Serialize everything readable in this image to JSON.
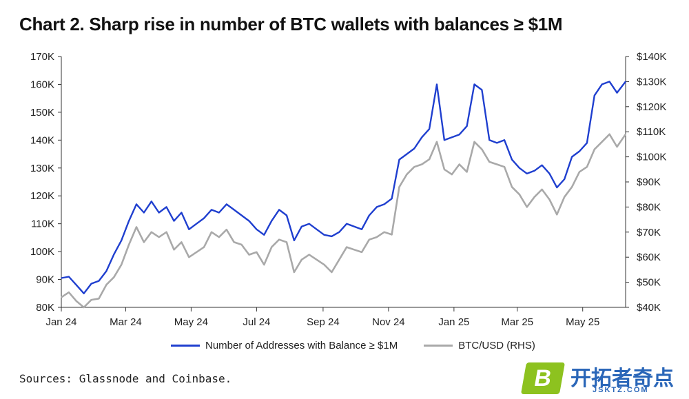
{
  "title": "Chart 2. Sharp rise in number of BTC wallets with balances ≥ $1M",
  "source": "Sources: Glassnode and Coinbase.",
  "watermark": {
    "badge": "B",
    "brand": "开拓者奇点",
    "url": "JSKTZ.COM"
  },
  "colors": {
    "addresses": "#1f3fcf",
    "btc": "#a9a9a9",
    "axis": "#333333"
  },
  "chart_data": {
    "type": "line",
    "title": "Chart 2. Sharp rise in number of BTC wallets with balances ≥ $1M",
    "x_tick_labels": [
      "Jan 24",
      "Mar 24",
      "May 24",
      "Jul 24",
      "Sep 24",
      "Nov 24",
      "Jan 25",
      "Mar 25",
      "May 25"
    ],
    "x_tick_dates": [
      "2024-01-01",
      "2024-03-01",
      "2024-05-01",
      "2024-07-01",
      "2024-09-01",
      "2024-11-01",
      "2025-01-01",
      "2025-03-01",
      "2025-05-01"
    ],
    "x_range": [
      "2024-01-01",
      "2025-06-10"
    ],
    "y_left": {
      "ticks": [
        "80K",
        "90K",
        "100K",
        "110K",
        "120K",
        "130K",
        "140K",
        "150K",
        "160K",
        "170K"
      ],
      "range": [
        80000,
        170000
      ]
    },
    "y_right": {
      "ticks": [
        "$40K",
        "$50K",
        "$60K",
        "$70K",
        "$80K",
        "$90K",
        "$100K",
        "$110K",
        "$120K",
        "$130K",
        "$140K"
      ],
      "range": [
        40000,
        140000
      ]
    },
    "legend": {
      "placement": "bottom"
    },
    "series": [
      {
        "name": "Number of Addresses with Balance ≥ $1M",
        "axis": "left",
        "color": "#1f3fcf",
        "points": [
          [
            "2024-01-01",
            90500
          ],
          [
            "2024-01-08",
            91000
          ],
          [
            "2024-01-15",
            88000
          ],
          [
            "2024-01-22",
            85000
          ],
          [
            "2024-01-29",
            88500
          ],
          [
            "2024-02-05",
            89500
          ],
          [
            "2024-02-12",
            93000
          ],
          [
            "2024-02-19",
            99000
          ],
          [
            "2024-02-26",
            104000
          ],
          [
            "2024-03-04",
            111000
          ],
          [
            "2024-03-11",
            117000
          ],
          [
            "2024-03-18",
            114000
          ],
          [
            "2024-03-25",
            118000
          ],
          [
            "2024-04-01",
            114000
          ],
          [
            "2024-04-08",
            116000
          ],
          [
            "2024-04-15",
            111000
          ],
          [
            "2024-04-22",
            114000
          ],
          [
            "2024-04-29",
            108000
          ],
          [
            "2024-05-06",
            110000
          ],
          [
            "2024-05-13",
            112000
          ],
          [
            "2024-05-20",
            115000
          ],
          [
            "2024-05-27",
            114000
          ],
          [
            "2024-06-03",
            117000
          ],
          [
            "2024-06-10",
            115000
          ],
          [
            "2024-06-17",
            113000
          ],
          [
            "2024-06-24",
            111000
          ],
          [
            "2024-07-01",
            108000
          ],
          [
            "2024-07-08",
            106000
          ],
          [
            "2024-07-15",
            111000
          ],
          [
            "2024-07-22",
            115000
          ],
          [
            "2024-07-29",
            113000
          ],
          [
            "2024-08-05",
            104000
          ],
          [
            "2024-08-12",
            109000
          ],
          [
            "2024-08-19",
            110000
          ],
          [
            "2024-08-26",
            108000
          ],
          [
            "2024-09-02",
            106000
          ],
          [
            "2024-09-09",
            105500
          ],
          [
            "2024-09-16",
            107000
          ],
          [
            "2024-09-23",
            110000
          ],
          [
            "2024-09-30",
            109000
          ],
          [
            "2024-10-07",
            108000
          ],
          [
            "2024-10-14",
            113000
          ],
          [
            "2024-10-21",
            116000
          ],
          [
            "2024-10-28",
            117000
          ],
          [
            "2024-11-04",
            119000
          ],
          [
            "2024-11-11",
            133000
          ],
          [
            "2024-11-18",
            135000
          ],
          [
            "2024-11-25",
            137000
          ],
          [
            "2024-12-02",
            141000
          ],
          [
            "2024-12-09",
            144000
          ],
          [
            "2024-12-16",
            160000
          ],
          [
            "2024-12-23",
            140000
          ],
          [
            "2024-12-30",
            141000
          ],
          [
            "2025-01-06",
            142000
          ],
          [
            "2025-01-13",
            145000
          ],
          [
            "2025-01-20",
            160000
          ],
          [
            "2025-01-27",
            158000
          ],
          [
            "2025-02-03",
            140000
          ],
          [
            "2025-02-10",
            139000
          ],
          [
            "2025-02-17",
            140000
          ],
          [
            "2025-02-24",
            133000
          ],
          [
            "2025-03-03",
            130000
          ],
          [
            "2025-03-10",
            128000
          ],
          [
            "2025-03-17",
            129000
          ],
          [
            "2025-03-24",
            131000
          ],
          [
            "2025-03-31",
            128000
          ],
          [
            "2025-04-07",
            123000
          ],
          [
            "2025-04-14",
            126000
          ],
          [
            "2025-04-21",
            134000
          ],
          [
            "2025-04-28",
            136000
          ],
          [
            "2025-05-05",
            139000
          ],
          [
            "2025-05-12",
            156000
          ],
          [
            "2025-05-19",
            160000
          ],
          [
            "2025-05-26",
            161000
          ],
          [
            "2025-06-02",
            157000
          ],
          [
            "2025-06-10",
            161000
          ]
        ]
      },
      {
        "name": "BTC/USD (RHS)",
        "axis": "right",
        "color": "#a9a9a9",
        "points": [
          [
            "2024-01-01",
            44000
          ],
          [
            "2024-01-08",
            46000
          ],
          [
            "2024-01-15",
            42500
          ],
          [
            "2024-01-22",
            40000
          ],
          [
            "2024-01-29",
            43000
          ],
          [
            "2024-02-05",
            43500
          ],
          [
            "2024-02-12",
            49000
          ],
          [
            "2024-02-19",
            52000
          ],
          [
            "2024-02-26",
            57000
          ],
          [
            "2024-03-04",
            65000
          ],
          [
            "2024-03-11",
            72000
          ],
          [
            "2024-03-18",
            66000
          ],
          [
            "2024-03-25",
            70000
          ],
          [
            "2024-04-01",
            68000
          ],
          [
            "2024-04-08",
            70000
          ],
          [
            "2024-04-15",
            63000
          ],
          [
            "2024-04-22",
            66000
          ],
          [
            "2024-04-29",
            60000
          ],
          [
            "2024-05-06",
            62000
          ],
          [
            "2024-05-13",
            64000
          ],
          [
            "2024-05-20",
            70000
          ],
          [
            "2024-05-27",
            68000
          ],
          [
            "2024-06-03",
            71000
          ],
          [
            "2024-06-10",
            66000
          ],
          [
            "2024-06-17",
            65000
          ],
          [
            "2024-06-24",
            61000
          ],
          [
            "2024-07-01",
            62000
          ],
          [
            "2024-07-08",
            57000
          ],
          [
            "2024-07-15",
            64000
          ],
          [
            "2024-07-22",
            67000
          ],
          [
            "2024-07-29",
            66000
          ],
          [
            "2024-08-05",
            54000
          ],
          [
            "2024-08-12",
            59000
          ],
          [
            "2024-08-19",
            61000
          ],
          [
            "2024-08-26",
            59000
          ],
          [
            "2024-09-02",
            57000
          ],
          [
            "2024-09-09",
            54000
          ],
          [
            "2024-09-16",
            59000
          ],
          [
            "2024-09-23",
            64000
          ],
          [
            "2024-09-30",
            63000
          ],
          [
            "2024-10-07",
            62000
          ],
          [
            "2024-10-14",
            67000
          ],
          [
            "2024-10-21",
            68000
          ],
          [
            "2024-10-28",
            70000
          ],
          [
            "2024-11-04",
            69000
          ],
          [
            "2024-11-11",
            88000
          ],
          [
            "2024-11-18",
            93000
          ],
          [
            "2024-11-25",
            96000
          ],
          [
            "2024-12-02",
            97000
          ],
          [
            "2024-12-09",
            99000
          ],
          [
            "2024-12-16",
            106000
          ],
          [
            "2024-12-23",
            95000
          ],
          [
            "2024-12-30",
            93000
          ],
          [
            "2025-01-06",
            97000
          ],
          [
            "2025-01-13",
            94000
          ],
          [
            "2025-01-20",
            106000
          ],
          [
            "2025-01-27",
            103000
          ],
          [
            "2025-02-03",
            98000
          ],
          [
            "2025-02-10",
            97000
          ],
          [
            "2025-02-17",
            96000
          ],
          [
            "2025-02-24",
            88000
          ],
          [
            "2025-03-03",
            85000
          ],
          [
            "2025-03-10",
            80000
          ],
          [
            "2025-03-17",
            84000
          ],
          [
            "2025-03-24",
            87000
          ],
          [
            "2025-03-31",
            83000
          ],
          [
            "2025-04-07",
            77000
          ],
          [
            "2025-04-14",
            84000
          ],
          [
            "2025-04-21",
            88000
          ],
          [
            "2025-04-28",
            94000
          ],
          [
            "2025-05-05",
            96000
          ],
          [
            "2025-05-12",
            103000
          ],
          [
            "2025-05-19",
            106000
          ],
          [
            "2025-05-26",
            109000
          ],
          [
            "2025-06-02",
            104000
          ],
          [
            "2025-06-10",
            109000
          ]
        ]
      }
    ]
  }
}
